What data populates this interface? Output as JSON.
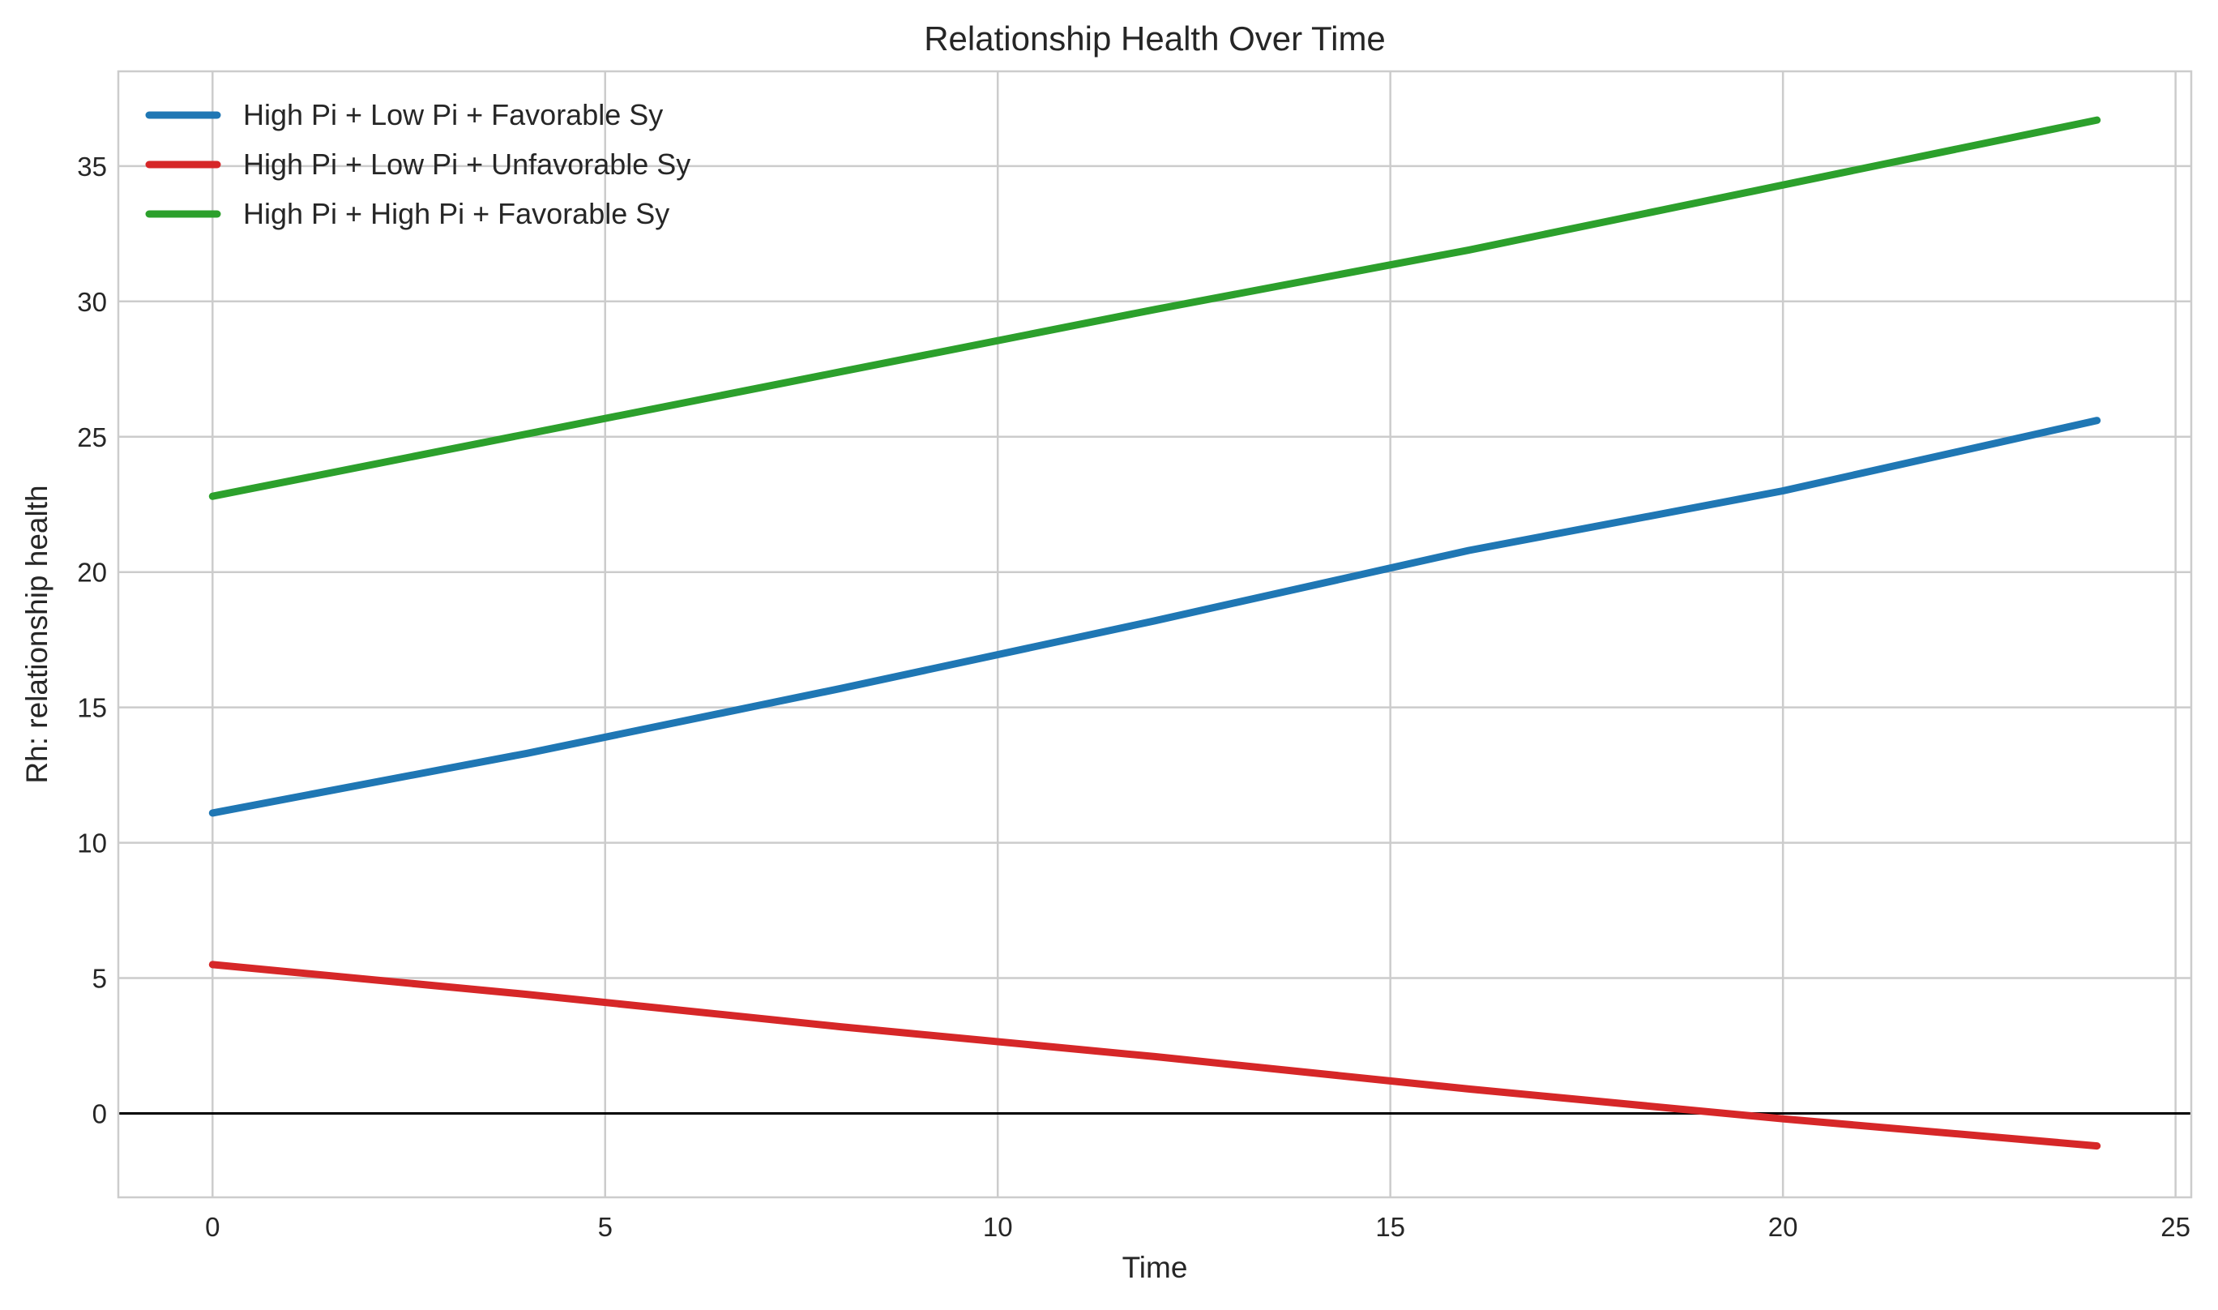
{
  "chart_data": {
    "type": "line",
    "title": "Relationship Health Over Time",
    "xlabel": "Time",
    "ylabel": "Rh: relationship health",
    "xlim": [
      -1.2,
      25.2
    ],
    "ylim": [
      -3.1,
      38.5
    ],
    "xticks": [
      0,
      5,
      10,
      15,
      20,
      25
    ],
    "yticks": [
      0,
      5,
      10,
      15,
      20,
      25,
      30,
      35
    ],
    "grid": true,
    "legend_position": "upper-left",
    "reference_line": {
      "y": 0,
      "color": "#000000"
    },
    "series": [
      {
        "name": "High Pi + Low Pi + Favorable Sy",
        "color": "#1f77b4",
        "points": [
          [
            0,
            11.1
          ],
          [
            4,
            13.3
          ],
          [
            8,
            15.7
          ],
          [
            12,
            18.2
          ],
          [
            16,
            20.8
          ],
          [
            20,
            23.0
          ],
          [
            24,
            25.6
          ]
        ]
      },
      {
        "name": "High Pi + Low Pi + Unfavorable Sy",
        "color": "#d62728",
        "points": [
          [
            0,
            5.5
          ],
          [
            4,
            4.4
          ],
          [
            8,
            3.2
          ],
          [
            12,
            2.1
          ],
          [
            16,
            0.9
          ],
          [
            20,
            -0.2
          ],
          [
            24,
            -1.2
          ]
        ]
      },
      {
        "name": "High Pi + High Pi + Favorable Sy",
        "color": "#2ca02c",
        "points": [
          [
            0,
            22.8
          ],
          [
            4,
            25.1
          ],
          [
            8,
            27.4
          ],
          [
            12,
            29.7
          ],
          [
            16,
            31.9
          ],
          [
            20,
            34.3
          ],
          [
            24,
            36.7
          ]
        ]
      }
    ]
  }
}
